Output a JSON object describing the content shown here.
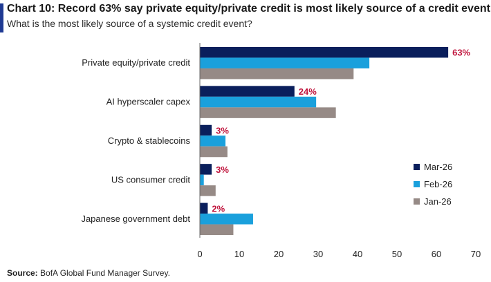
{
  "header": {
    "title": "Chart 10: Record 63% say private equity/private credit is most likely source of a credit event",
    "subtitle": "What is the most likely source of a systemic credit event?"
  },
  "footer": {
    "source_label": "Source:",
    "source_text": "BofA Global Fund Manager Survey."
  },
  "chart_data": {
    "type": "bar",
    "orientation": "horizontal",
    "title": "Chart 10: Record 63% say private equity/private credit is most likely source of a credit event",
    "subtitle": "What is the most likely source of a systemic credit event?",
    "categories": [
      "Private equity/private credit",
      "AI hyperscaler capex",
      "Crypto & stablecoins",
      "US consumer credit",
      "Japanese government debt"
    ],
    "series": [
      {
        "name": "Mar-26",
        "color": "#0a1f5c",
        "values": [
          63,
          24,
          3,
          3,
          2
        ]
      },
      {
        "name": "Feb-26",
        "color": "#1aa0dc",
        "values": [
          43,
          29.5,
          6.5,
          1,
          13.5
        ]
      },
      {
        "name": "Jan-26",
        "color": "#968a86",
        "values": [
          39,
          34.5,
          7,
          4,
          8.5
        ]
      }
    ],
    "data_labels": [
      "63%",
      "24%",
      "3%",
      "3%",
      "2%"
    ],
    "data_label_color": "#c0143c",
    "xlim": [
      0,
      70
    ],
    "xticks": [
      "0",
      "10",
      "20",
      "30",
      "40",
      "50",
      "60",
      "70"
    ],
    "grid": false,
    "legend_position": "right"
  }
}
